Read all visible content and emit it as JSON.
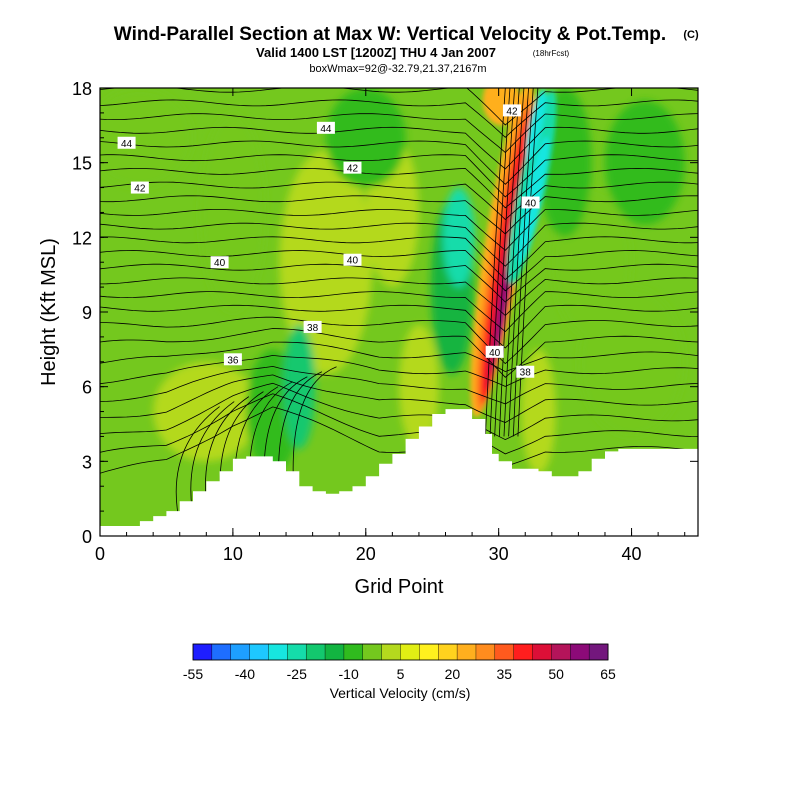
{
  "chart_data": {
    "type": "heatmap",
    "title": "Wind-Parallel Section at Max W: Vertical Velocity & Pot.Temp.",
    "title_mark": "(C)",
    "subtitle": "Valid 1400 LST [1200Z] THU 4 Jan 2007",
    "subtitle_note": "(18hrFcst)",
    "info": "boxWmax=92@-32.79,21.37,2167m",
    "xlabel": "Grid Point",
    "ylabel": "Height (Kft MSL)",
    "xlim": [
      0,
      45
    ],
    "ylim": [
      0,
      18
    ],
    "xticks": [
      0,
      10,
      20,
      30,
      40
    ],
    "yticks": [
      0,
      3,
      6,
      9,
      12,
      15,
      18
    ],
    "colorbar": {
      "label": "Vertical Velocity (cm/s)",
      "tick_values": [
        -55,
        -40,
        -25,
        -10,
        5,
        20,
        35,
        50,
        65
      ],
      "colors": [
        "#1e1eff",
        "#1e6eff",
        "#1e9fff",
        "#1ec8ff",
        "#17e6e0",
        "#15dcaa",
        "#13c86e",
        "#12b441",
        "#30bb1e",
        "#74c81e",
        "#b4d91e",
        "#e1ee14",
        "#fff01e",
        "#ffd21e",
        "#ffaf1e",
        "#ff8c1e",
        "#ff5a1e",
        "#ff1e1e",
        "#dc0f37",
        "#b4145a",
        "#8c0a78",
        "#73177d"
      ]
    },
    "theta_contour_labels": [
      {
        "value": "44",
        "x": 2,
        "y": 15.8
      },
      {
        "value": "42",
        "x": 3,
        "y": 14.0
      },
      {
        "value": "44",
        "x": 17,
        "y": 16.4
      },
      {
        "value": "42",
        "x": 19,
        "y": 14.8
      },
      {
        "value": "40",
        "x": 9,
        "y": 11.0
      },
      {
        "value": "40",
        "x": 19,
        "y": 11.1
      },
      {
        "value": "38",
        "x": 16,
        "y": 8.4
      },
      {
        "value": "36",
        "x": 10,
        "y": 7.1
      },
      {
        "value": "40",
        "x": 29.7,
        "y": 7.4
      },
      {
        "value": "38",
        "x": 32,
        "y": 6.6
      },
      {
        "value": "40",
        "x": 32.4,
        "y": 13.4
      },
      {
        "value": "42",
        "x": 31,
        "y": 17.1
      }
    ],
    "terrain": [
      [
        0,
        0.4
      ],
      [
        2,
        0.4
      ],
      [
        3,
        0.6
      ],
      [
        4,
        0.8
      ],
      [
        5,
        1.0
      ],
      [
        6,
        1.4
      ],
      [
        7,
        1.8
      ],
      [
        8,
        2.2
      ],
      [
        9,
        2.6
      ],
      [
        10,
        3.1
      ],
      [
        11,
        3.2
      ],
      [
        12,
        3.2
      ],
      [
        13,
        3.0
      ],
      [
        14,
        2.6
      ],
      [
        15,
        2.0
      ],
      [
        16,
        1.8
      ],
      [
        17,
        1.7
      ],
      [
        18,
        1.8
      ],
      [
        19,
        2.0
      ],
      [
        20,
        2.4
      ],
      [
        21,
        2.9
      ],
      [
        22,
        3.3
      ],
      [
        23,
        3.9
      ],
      [
        24,
        4.4
      ],
      [
        25,
        4.9
      ],
      [
        26,
        5.1
      ],
      [
        27,
        5.1
      ],
      [
        28,
        4.7
      ],
      [
        29,
        4.1
      ],
      [
        29.5,
        3.3
      ],
      [
        30,
        3.0
      ],
      [
        31,
        2.7
      ],
      [
        32,
        2.7
      ],
      [
        33,
        2.6
      ],
      [
        34,
        2.4
      ],
      [
        35,
        2.4
      ],
      [
        36,
        2.6
      ],
      [
        37,
        3.1
      ],
      [
        38,
        3.4
      ],
      [
        39,
        3.5
      ],
      [
        41,
        3.5
      ],
      [
        43,
        3.5
      ],
      [
        45,
        3.5
      ]
    ],
    "w_field_description_values_cm_s": {
      "background": -10,
      "updraft_core_max": 65,
      "downdraft_min": -30,
      "updraft_axis_x": [
        30,
        31.5
      ],
      "updraft_axis_height": [
        5,
        18
      ]
    }
  }
}
